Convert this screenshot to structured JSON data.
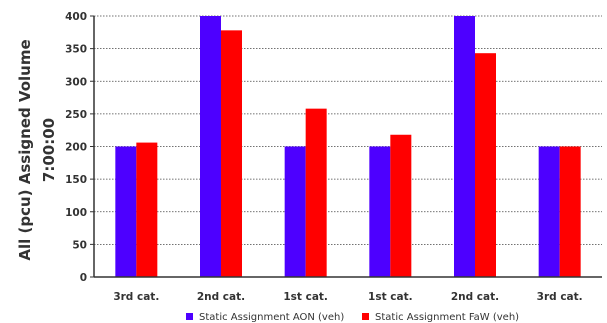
{
  "chart_data": {
    "type": "bar",
    "ylabel": "All (pcu) Assigned Volume",
    "ylabel_line2": "7:00:00",
    "xlabel": "",
    "categories": [
      "3rd cat.",
      "2nd cat.",
      "1st cat.",
      "1st cat.",
      "2nd cat.",
      "3rd cat."
    ],
    "series": [
      {
        "name": "Static Assignment AON (veh)",
        "color": "#4d00ff",
        "values": [
          200,
          400,
          200,
          200,
          400,
          200
        ]
      },
      {
        "name": "Static Assignment FaW (veh)",
        "color": "#ff0000",
        "values": [
          206,
          378,
          258,
          218,
          343,
          200
        ]
      }
    ],
    "ylim": [
      0,
      400
    ],
    "yticks": [
      0,
      50,
      100,
      150,
      200,
      250,
      300,
      350,
      400
    ],
    "grid": true,
    "legend_position": "bottom-center"
  }
}
